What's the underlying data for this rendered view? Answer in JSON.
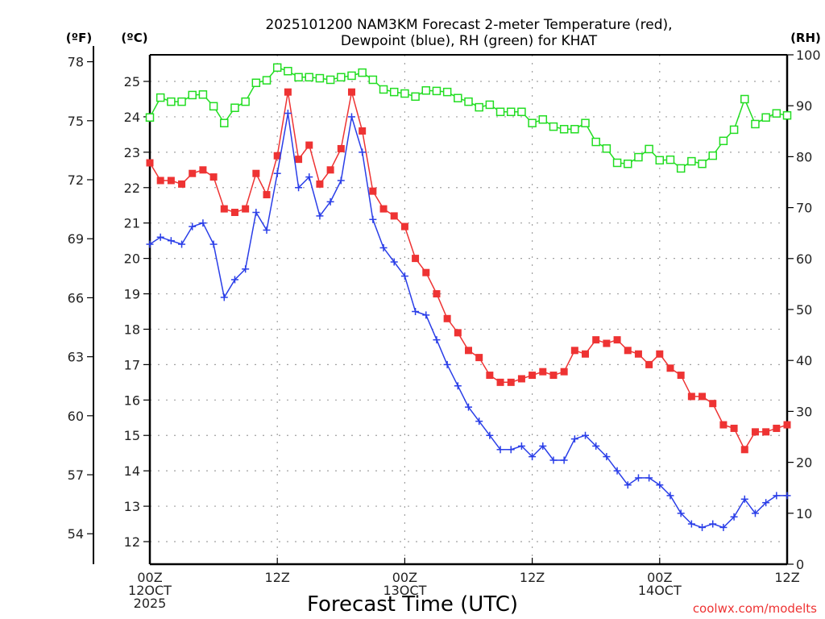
{
  "chart_data": {
    "type": "line",
    "title_lines": [
      "2025101200 NAM3KM Forecast 2-meter Temperature (red),",
      "Dewpoint (blue), RH (green) for KHAT"
    ],
    "xlabel": "Forecast Time (UTC)",
    "credit": "coolwx.com/modelts",
    "colors": {
      "temperature": "#ee3333",
      "dewpoint": "#2a3ee8",
      "rh": "#22dd22",
      "credit": "#ee3333",
      "grid": "#a0a0a0"
    },
    "x": {
      "unit": "forecast hour",
      "range": [
        0,
        60
      ],
      "ticks": [
        {
          "hour": 0,
          "lines": [
            "00Z",
            "12OCT",
            "2025"
          ]
        },
        {
          "hour": 12,
          "lines": [
            "12Z"
          ]
        },
        {
          "hour": 24,
          "lines": [
            "00Z",
            "13OCT"
          ]
        },
        {
          "hour": 36,
          "lines": [
            "12Z"
          ]
        },
        {
          "hour": 48,
          "lines": [
            "00Z",
            "14OCT"
          ]
        },
        {
          "hour": 60,
          "lines": [
            "12Z"
          ]
        }
      ],
      "minor_grid_every_hours": 12
    },
    "y_celsius": {
      "label": "(ºC)",
      "range": [
        11.35,
        25.75
      ],
      "ticks": [
        12,
        13,
        14,
        15,
        16,
        17,
        18,
        19,
        20,
        21,
        22,
        23,
        24,
        25
      ]
    },
    "y_fahrenheit": {
      "label": "(ºF)",
      "ticks": [
        54,
        57,
        60,
        63,
        66,
        69,
        72,
        75,
        78
      ]
    },
    "y_rh": {
      "label": "(RH)",
      "range": [
        0,
        100
      ],
      "ticks": [
        0,
        10,
        20,
        30,
        40,
        50,
        60,
        70,
        80,
        90,
        100
      ]
    },
    "grid": true,
    "series": [
      {
        "name": "Temperature",
        "axis": "celsius",
        "marker": "filled-square",
        "values": [
          22.7,
          22.2,
          22.2,
          22.1,
          22.4,
          22.5,
          22.3,
          21.4,
          21.3,
          21.4,
          22.4,
          21.8,
          22.9,
          24.7,
          22.8,
          23.2,
          22.1,
          22.5,
          23.1,
          24.7,
          23.6,
          21.9,
          21.4,
          21.2,
          20.9,
          20.0,
          19.6,
          19.0,
          18.3,
          17.9,
          17.4,
          17.2,
          16.7,
          16.5,
          16.5,
          16.6,
          16.7,
          16.8,
          16.7,
          16.8,
          17.4,
          17.3,
          17.7,
          17.6,
          17.7,
          17.4,
          17.3,
          17.0,
          17.3,
          16.9,
          16.7,
          16.1,
          16.1,
          15.9,
          15.3,
          15.2,
          14.6,
          15.1,
          15.1,
          15.2,
          15.3
        ]
      },
      {
        "name": "Dewpoint",
        "axis": "celsius",
        "marker": "plus",
        "values": [
          20.4,
          20.6,
          20.5,
          20.4,
          20.9,
          21.0,
          20.4,
          18.9,
          19.4,
          19.7,
          21.3,
          20.8,
          22.4,
          24.1,
          22.0,
          22.3,
          21.2,
          21.6,
          22.2,
          24.0,
          23.0,
          21.1,
          20.3,
          19.9,
          19.5,
          18.5,
          18.4,
          17.7,
          17.0,
          16.4,
          15.8,
          15.4,
          15.0,
          14.6,
          14.6,
          14.7,
          14.4,
          14.7,
          14.3,
          14.3,
          14.9,
          15.0,
          14.7,
          14.4,
          14.0,
          13.6,
          13.8,
          13.8,
          13.6,
          13.3,
          12.8,
          12.5,
          12.4,
          12.5,
          12.4,
          12.7,
          13.2,
          12.8,
          13.1,
          13.3,
          13.3
        ]
      },
      {
        "name": "RH",
        "axis": "rh",
        "marker": "open-square",
        "values": [
          87.7,
          91.6,
          90.8,
          90.8,
          92.1,
          92.2,
          89.9,
          86.6,
          89.6,
          90.8,
          94.5,
          95.0,
          97.5,
          96.8,
          95.6,
          95.6,
          95.4,
          95.1,
          95.6,
          95.9,
          96.5,
          95.1,
          93.2,
          92.7,
          92.4,
          91.8,
          93.0,
          92.9,
          92.7,
          91.5,
          90.8,
          89.7,
          90.2,
          88.8,
          88.8,
          88.8,
          86.6,
          87.3,
          85.9,
          85.4,
          85.4,
          86.6,
          82.9,
          81.6,
          78.8,
          78.6,
          79.9,
          81.5,
          79.3,
          79.4,
          77.7,
          79.1,
          78.6,
          80.2,
          83.1,
          85.3,
          91.3,
          86.4,
          87.7,
          88.5,
          88.1
        ]
      }
    ]
  }
}
